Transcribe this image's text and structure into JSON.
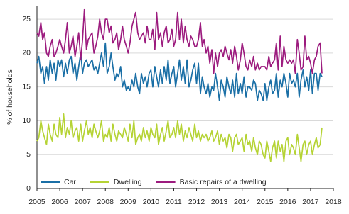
{
  "chart_data": {
    "type": "line",
    "y_label": "% of households",
    "x": [
      2005,
      2005.08,
      2005.17,
      2005.25,
      2005.33,
      2005.42,
      2005.5,
      2005.58,
      2005.67,
      2005.75,
      2005.83,
      2005.92,
      2006,
      2006.08,
      2006.17,
      2006.25,
      2006.33,
      2006.42,
      2006.5,
      2006.58,
      2006.67,
      2006.75,
      2006.83,
      2006.92,
      2007,
      2007.08,
      2007.17,
      2007.25,
      2007.33,
      2007.42,
      2007.5,
      2007.58,
      2007.67,
      2007.75,
      2007.83,
      2007.92,
      2008,
      2008.08,
      2008.17,
      2008.25,
      2008.33,
      2008.42,
      2008.5,
      2008.58,
      2008.67,
      2008.75,
      2008.83,
      2008.92,
      2009,
      2009.08,
      2009.17,
      2009.25,
      2009.33,
      2009.42,
      2009.5,
      2009.58,
      2009.67,
      2009.75,
      2009.83,
      2009.92,
      2010,
      2010.08,
      2010.17,
      2010.25,
      2010.33,
      2010.42,
      2010.5,
      2010.58,
      2010.67,
      2010.75,
      2010.83,
      2010.92,
      2011,
      2011.08,
      2011.17,
      2011.25,
      2011.33,
      2011.42,
      2011.5,
      2011.58,
      2011.67,
      2011.75,
      2011.83,
      2011.92,
      2012,
      2012.08,
      2012.17,
      2012.25,
      2012.33,
      2012.42,
      2012.5,
      2012.58,
      2012.67,
      2012.75,
      2012.83,
      2012.92,
      2013,
      2013.08,
      2013.17,
      2013.25,
      2013.33,
      2013.42,
      2013.5,
      2013.58,
      2013.67,
      2013.75,
      2013.83,
      2013.92,
      2014,
      2014.08,
      2014.17,
      2014.25,
      2014.33,
      2014.42,
      2014.5,
      2014.58,
      2014.67,
      2014.75,
      2014.83,
      2014.92,
      2015,
      2015.08,
      2015.17,
      2015.25,
      2015.33,
      2015.42,
      2015.5,
      2015.58,
      2015.67,
      2015.75,
      2015.83,
      2015.92,
      2016,
      2016.08,
      2016.17,
      2016.25,
      2016.33,
      2016.42,
      2016.5,
      2016.58,
      2016.67,
      2016.75,
      2016.83,
      2016.92,
      2017,
      2017.08,
      2017.17,
      2017.25,
      2017.33,
      2017.42,
      2017.5
    ],
    "series": [
      {
        "name": "Car",
        "color": "#1a6fa6",
        "values": [
          18.5,
          19.5,
          17,
          18,
          15.5,
          18,
          16,
          19,
          17,
          18.5,
          16,
          19,
          18,
          19,
          16.5,
          18.5,
          17,
          19,
          19.5,
          17,
          18.5,
          16,
          18,
          20,
          17,
          18.5,
          19,
          18,
          18.5,
          19,
          17.5,
          18,
          17,
          18.5,
          20,
          18,
          21.5,
          17,
          18,
          20,
          18,
          16,
          17,
          16.5,
          18,
          15,
          16,
          14.5,
          15,
          14.5,
          16,
          15,
          17,
          15,
          14,
          17,
          15.5,
          16.5,
          15,
          17,
          17.5,
          15,
          18,
          16.5,
          15,
          17.5,
          15.5,
          18,
          16,
          19,
          15.5,
          17,
          18,
          15,
          17,
          19,
          16,
          18,
          15.5,
          19,
          15,
          16,
          17.5,
          18.5,
          15.5,
          18.5,
          14,
          16.5,
          15,
          14,
          15.5,
          13.5,
          15,
          14.5,
          17,
          15,
          13,
          16,
          15,
          13.5,
          16.5,
          15,
          14,
          16,
          13.5,
          17,
          14,
          15.5,
          14,
          16.5,
          13.5,
          15,
          15,
          14.5,
          16,
          15.5,
          13,
          14.5,
          14,
          13,
          15.5,
          13,
          15,
          16,
          14,
          14.5,
          17,
          13.5,
          16,
          15,
          17,
          15.5,
          13.5,
          17,
          15.5,
          16,
          15,
          17,
          13.5,
          16,
          17.5,
          15,
          16.5,
          14.5,
          17.5,
          14,
          17,
          17,
          14.5,
          17,
          16.5
        ]
      },
      {
        "name": "Dwelling",
        "color": "#b5d334",
        "values": [
          7,
          7.5,
          10,
          8.5,
          7.5,
          6.5,
          9.5,
          8,
          7,
          9.5,
          8,
          7.5,
          10.5,
          8,
          11,
          7.5,
          9,
          8,
          10,
          7.5,
          8.5,
          9,
          7,
          9.5,
          7,
          8.5,
          10,
          8,
          9,
          7.5,
          9.5,
          8.5,
          7.5,
          8.5,
          10,
          7,
          8,
          7.5,
          9,
          7,
          9.5,
          8,
          7,
          8.5,
          8,
          7.5,
          9,
          8,
          7,
          9.5,
          7.5,
          10,
          6.5,
          7.5,
          8,
          7,
          9,
          7.5,
          8.5,
          7,
          9,
          8,
          7.5,
          9.5,
          6.5,
          8,
          9,
          7,
          8.5,
          10,
          7.5,
          8,
          9,
          7.5,
          10,
          8,
          9.5,
          7,
          8.5,
          7.5,
          9,
          8,
          7,
          9.5,
          7.5,
          8.5,
          7,
          8,
          7.5,
          8,
          7,
          7.5,
          8.5,
          7,
          7.5,
          8.5,
          6.5,
          8,
          7,
          7.5,
          6,
          8,
          7.5,
          5.5,
          7.5,
          8,
          6.5,
          7,
          7.5,
          5.5,
          8,
          6.5,
          7,
          5.5,
          7.5,
          6,
          5,
          7,
          6.5,
          5,
          4.5,
          7,
          5.5,
          4,
          6,
          7,
          4.5,
          7,
          5.5,
          6.5,
          4,
          7,
          7.5,
          5,
          6.5,
          6,
          5,
          8,
          6,
          4,
          6.5,
          7,
          5,
          6.5,
          7,
          5,
          6.5,
          7.5,
          6,
          6.5,
          9
        ]
      },
      {
        "name": "Basic repairs of a dwelling",
        "color": "#9c1b7e",
        "values": [
          23,
          22.5,
          24.5,
          22,
          23,
          20,
          19.5,
          21,
          22,
          19.5,
          20,
          21,
          22,
          21,
          20,
          22,
          24.5,
          20,
          21,
          22.5,
          19.5,
          21,
          23,
          19,
          22,
          26.5,
          20.5,
          22,
          22.5,
          23,
          20,
          21,
          22.5,
          25,
          23,
          22,
          25,
          25,
          23,
          24,
          21.5,
          22,
          23,
          20.5,
          22,
          24,
          22,
          21,
          20,
          21.5,
          24,
          25,
          26,
          23,
          22,
          22.5,
          23,
          21.5,
          24,
          22,
          22,
          23.5,
          20.5,
          26,
          22,
          23,
          21,
          23,
          24,
          21.5,
          22,
          23.5,
          21,
          22,
          26,
          22,
          25,
          21.5,
          24,
          22,
          21,
          22.5,
          22,
          21,
          21,
          22,
          24.5,
          21,
          22,
          20,
          21,
          18.5,
          20.5,
          17,
          20,
          18,
          20,
          20.5,
          19.5,
          21,
          20,
          19,
          20.5,
          18.5,
          21,
          19.5,
          17.5,
          19,
          21.5,
          20,
          18,
          17.5,
          19,
          18,
          19.5,
          17.5,
          18.5,
          17.5,
          18,
          18,
          18,
          17.5,
          19.5,
          18,
          18.5,
          19,
          21.5,
          17.5,
          22.5,
          18,
          21,
          19,
          18.5,
          19,
          18.5,
          19,
          17,
          22,
          20,
          17.5,
          18,
          22.5,
          19,
          19.5,
          18.5,
          17,
          19,
          19.5,
          21,
          21.5,
          17
        ]
      }
    ],
    "xlim": [
      2005,
      2018
    ],
    "xticks": [
      2005,
      2006,
      2007,
      2008,
      2009,
      2010,
      2011,
      2012,
      2013,
      2014,
      2015,
      2016,
      2017,
      2018
    ],
    "ylim": [
      0,
      27
    ],
    "yticks": [
      0,
      5,
      10,
      15,
      20,
      25
    ],
    "grid": true,
    "legend": "lower left"
  }
}
